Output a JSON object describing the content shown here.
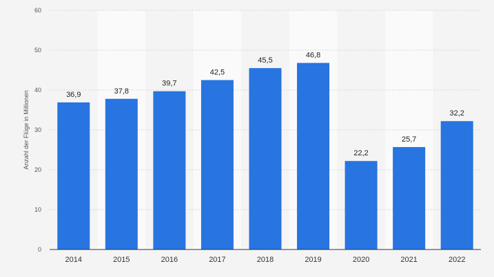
{
  "chart_data": {
    "type": "bar",
    "categories": [
      "2014",
      "2015",
      "2016",
      "2017",
      "2018",
      "2019",
      "2020",
      "2021",
      "2022"
    ],
    "values": [
      36.9,
      37.8,
      39.7,
      42.5,
      45.5,
      46.8,
      22.2,
      25.7,
      32.2
    ],
    "value_labels": [
      "36,9",
      "37,8",
      "39,7",
      "42,5",
      "45,5",
      "46,8",
      "22,2",
      "25,7",
      "32,2"
    ],
    "title": "",
    "xlabel": "",
    "ylabel": "Anzahl der Flüge in Millionen",
    "ylim": [
      0,
      60
    ],
    "yticks": [
      0,
      10,
      20,
      30,
      40,
      50,
      60
    ],
    "grid": true,
    "legend": "none"
  },
  "colors": {
    "bar": "#2874e0",
    "background": "#f4f4f4",
    "alt_band": "#fafafa",
    "grid": "#cfcfcf"
  }
}
